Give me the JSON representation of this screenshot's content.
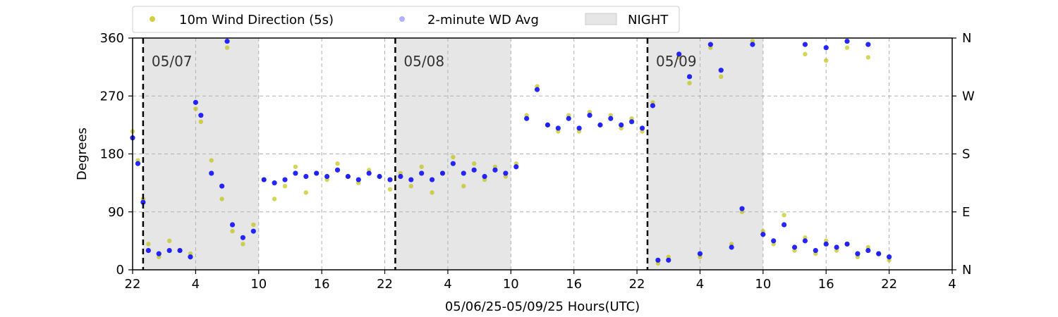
{
  "chart_data": {
    "type": "scatter",
    "xlabel": "05/06/25-05/09/25  Hours(UTC)",
    "ylabel": "Degrees",
    "x_range_hours": [
      0,
      78
    ],
    "ylim": [
      0,
      360
    ],
    "x_ticks": [
      {
        "hour": 0,
        "label": "22"
      },
      {
        "hour": 6,
        "label": "4"
      },
      {
        "hour": 12,
        "label": "10"
      },
      {
        "hour": 18,
        "label": "16"
      },
      {
        "hour": 24,
        "label": "22"
      },
      {
        "hour": 30,
        "label": "4"
      },
      {
        "hour": 36,
        "label": "10"
      },
      {
        "hour": 42,
        "label": "16"
      },
      {
        "hour": 48,
        "label": "22"
      },
      {
        "hour": 54,
        "label": "4"
      },
      {
        "hour": 60,
        "label": "10"
      },
      {
        "hour": 66,
        "label": "16"
      },
      {
        "hour": 72,
        "label": "22"
      },
      {
        "hour": 78,
        "label": "4"
      }
    ],
    "y_ticks": [
      0,
      90,
      180,
      270,
      360
    ],
    "y_ticks_right": [
      {
        "value": 0,
        "label": "N"
      },
      {
        "value": 90,
        "label": "E"
      },
      {
        "value": 180,
        "label": "S"
      },
      {
        "value": 270,
        "label": "W"
      },
      {
        "value": 360,
        "label": "N"
      }
    ],
    "grid": true,
    "legend_placement": "top-left, above plot",
    "legend": [
      {
        "label": "10m Wind Direction (5s)",
        "color": "#bfbf00",
        "marker": "circle"
      },
      {
        "label": "2-minute WD Avg",
        "color": "#0000ff",
        "marker": "circle-translucent"
      },
      {
        "label": "NIGHT",
        "color": "#e6e6e6",
        "marker": "box"
      }
    ],
    "day_boundaries": [
      {
        "hour": 1.0,
        "label": "05/07"
      },
      {
        "hour": 25.0,
        "label": "05/08"
      },
      {
        "hour": 49.0,
        "label": "05/09"
      }
    ],
    "night_periods": [
      {
        "start": 1.0,
        "end": 12.0
      },
      {
        "start": 25.0,
        "end": 36.0
      },
      {
        "start": 49.0,
        "end": 60.0
      }
    ],
    "series": [
      {
        "name": "10m Wind Direction (5s)",
        "color": "#bfbf00",
        "points": [
          {
            "x": 0.0,
            "y": 215
          },
          {
            "x": 0.5,
            "y": 170
          },
          {
            "x": 1.0,
            "y": 110
          },
          {
            "x": 1.5,
            "y": 40
          },
          {
            "x": 2.5,
            "y": 20
          },
          {
            "x": 3.5,
            "y": 45
          },
          {
            "x": 4.5,
            "y": 30
          },
          {
            "x": 5.5,
            "y": 25
          },
          {
            "x": 6.0,
            "y": 250
          },
          {
            "x": 6.5,
            "y": 230
          },
          {
            "x": 7.5,
            "y": 170
          },
          {
            "x": 8.5,
            "y": 110
          },
          {
            "x": 9.0,
            "y": 345
          },
          {
            "x": 9.5,
            "y": 60
          },
          {
            "x": 10.5,
            "y": 40
          },
          {
            "x": 11.5,
            "y": 70
          },
          {
            "x": 12.5,
            "y": 140
          },
          {
            "x": 13.5,
            "y": 110
          },
          {
            "x": 14.5,
            "y": 130
          },
          {
            "x": 15.5,
            "y": 160
          },
          {
            "x": 16.5,
            "y": 120
          },
          {
            "x": 17.5,
            "y": 150
          },
          {
            "x": 18.5,
            "y": 140
          },
          {
            "x": 19.5,
            "y": 165
          },
          {
            "x": 20.5,
            "y": 145
          },
          {
            "x": 21.5,
            "y": 135
          },
          {
            "x": 22.5,
            "y": 155
          },
          {
            "x": 23.5,
            "y": 145
          },
          {
            "x": 24.5,
            "y": 125
          },
          {
            "x": 25.5,
            "y": 150
          },
          {
            "x": 26.5,
            "y": 130
          },
          {
            "x": 27.5,
            "y": 160
          },
          {
            "x": 28.5,
            "y": 120
          },
          {
            "x": 29.5,
            "y": 150
          },
          {
            "x": 30.5,
            "y": 175
          },
          {
            "x": 31.5,
            "y": 130
          },
          {
            "x": 32.5,
            "y": 165
          },
          {
            "x": 33.5,
            "y": 140
          },
          {
            "x": 34.5,
            "y": 160
          },
          {
            "x": 35.5,
            "y": 145
          },
          {
            "x": 36.5,
            "y": 165
          },
          {
            "x": 37.5,
            "y": 240
          },
          {
            "x": 38.5,
            "y": 285
          },
          {
            "x": 39.5,
            "y": 225
          },
          {
            "x": 40.5,
            "y": 215
          },
          {
            "x": 41.5,
            "y": 240
          },
          {
            "x": 42.5,
            "y": 215
          },
          {
            "x": 43.5,
            "y": 245
          },
          {
            "x": 44.5,
            "y": 225
          },
          {
            "x": 45.5,
            "y": 240
          },
          {
            "x": 46.5,
            "y": 220
          },
          {
            "x": 47.5,
            "y": 235
          },
          {
            "x": 48.5,
            "y": 215
          },
          {
            "x": 49.5,
            "y": 260
          },
          {
            "x": 50.0,
            "y": 10
          },
          {
            "x": 51.0,
            "y": 20
          },
          {
            "x": 52.0,
            "y": 330
          },
          {
            "x": 53.0,
            "y": 290
          },
          {
            "x": 54.0,
            "y": 20
          },
          {
            "x": 55.0,
            "y": 345
          },
          {
            "x": 56.0,
            "y": 300
          },
          {
            "x": 57.0,
            "y": 40
          },
          {
            "x": 58.0,
            "y": 90
          },
          {
            "x": 59.0,
            "y": 355
          },
          {
            "x": 60.0,
            "y": 60
          },
          {
            "x": 61.0,
            "y": 40
          },
          {
            "x": 62.0,
            "y": 85
          },
          {
            "x": 63.0,
            "y": 30
          },
          {
            "x": 64.0,
            "y": 50
          },
          {
            "x": 65.0,
            "y": 25
          },
          {
            "x": 66.0,
            "y": 45
          },
          {
            "x": 67.0,
            "y": 30
          },
          {
            "x": 68.0,
            "y": 40
          },
          {
            "x": 69.0,
            "y": 20
          },
          {
            "x": 70.0,
            "y": 35
          },
          {
            "x": 71.0,
            "y": 25
          },
          {
            "x": 72.0,
            "y": 15
          },
          {
            "x": 64.0,
            "y": 335
          },
          {
            "x": 66.0,
            "y": 325
          },
          {
            "x": 68.0,
            "y": 345
          },
          {
            "x": 70.0,
            "y": 330
          }
        ]
      },
      {
        "name": "2-minute WD Avg",
        "color": "#0000ff",
        "points": [
          {
            "x": 0.0,
            "y": 205
          },
          {
            "x": 0.5,
            "y": 165
          },
          {
            "x": 1.0,
            "y": 105
          },
          {
            "x": 1.5,
            "y": 30
          },
          {
            "x": 2.5,
            "y": 25
          },
          {
            "x": 3.5,
            "y": 30
          },
          {
            "x": 4.5,
            "y": 30
          },
          {
            "x": 5.5,
            "y": 20
          },
          {
            "x": 6.0,
            "y": 260
          },
          {
            "x": 6.5,
            "y": 240
          },
          {
            "x": 7.5,
            "y": 150
          },
          {
            "x": 8.5,
            "y": 130
          },
          {
            "x": 9.0,
            "y": 355
          },
          {
            "x": 9.5,
            "y": 70
          },
          {
            "x": 10.5,
            "y": 50
          },
          {
            "x": 11.5,
            "y": 60
          },
          {
            "x": 12.5,
            "y": 140
          },
          {
            "x": 13.5,
            "y": 135
          },
          {
            "x": 14.5,
            "y": 140
          },
          {
            "x": 15.5,
            "y": 150
          },
          {
            "x": 16.5,
            "y": 145
          },
          {
            "x": 17.5,
            "y": 150
          },
          {
            "x": 18.5,
            "y": 145
          },
          {
            "x": 19.5,
            "y": 155
          },
          {
            "x": 20.5,
            "y": 145
          },
          {
            "x": 21.5,
            "y": 140
          },
          {
            "x": 22.5,
            "y": 150
          },
          {
            "x": 23.5,
            "y": 145
          },
          {
            "x": 24.5,
            "y": 140
          },
          {
            "x": 25.5,
            "y": 145
          },
          {
            "x": 26.5,
            "y": 140
          },
          {
            "x": 27.5,
            "y": 150
          },
          {
            "x": 28.5,
            "y": 140
          },
          {
            "x": 29.5,
            "y": 150
          },
          {
            "x": 30.5,
            "y": 165
          },
          {
            "x": 31.5,
            "y": 150
          },
          {
            "x": 32.5,
            "y": 155
          },
          {
            "x": 33.5,
            "y": 145
          },
          {
            "x": 34.5,
            "y": 155
          },
          {
            "x": 35.5,
            "y": 150
          },
          {
            "x": 36.5,
            "y": 160
          },
          {
            "x": 37.5,
            "y": 235
          },
          {
            "x": 38.5,
            "y": 280
          },
          {
            "x": 39.5,
            "y": 225
          },
          {
            "x": 40.5,
            "y": 220
          },
          {
            "x": 41.5,
            "y": 235
          },
          {
            "x": 42.5,
            "y": 220
          },
          {
            "x": 43.5,
            "y": 240
          },
          {
            "x": 44.5,
            "y": 225
          },
          {
            "x": 45.5,
            "y": 235
          },
          {
            "x": 46.5,
            "y": 225
          },
          {
            "x": 47.5,
            "y": 230
          },
          {
            "x": 48.5,
            "y": 220
          },
          {
            "x": 49.5,
            "y": 255
          },
          {
            "x": 50.0,
            "y": 15
          },
          {
            "x": 51.0,
            "y": 15
          },
          {
            "x": 52.0,
            "y": 335
          },
          {
            "x": 53.0,
            "y": 300
          },
          {
            "x": 54.0,
            "y": 25
          },
          {
            "x": 55.0,
            "y": 350
          },
          {
            "x": 56.0,
            "y": 310
          },
          {
            "x": 57.0,
            "y": 35
          },
          {
            "x": 58.0,
            "y": 95
          },
          {
            "x": 59.0,
            "y": 350
          },
          {
            "x": 60.0,
            "y": 55
          },
          {
            "x": 61.0,
            "y": 45
          },
          {
            "x": 62.0,
            "y": 70
          },
          {
            "x": 63.0,
            "y": 35
          },
          {
            "x": 64.0,
            "y": 45
          },
          {
            "x": 65.0,
            "y": 30
          },
          {
            "x": 66.0,
            "y": 40
          },
          {
            "x": 67.0,
            "y": 35
          },
          {
            "x": 68.0,
            "y": 40
          },
          {
            "x": 69.0,
            "y": 25
          },
          {
            "x": 70.0,
            "y": 30
          },
          {
            "x": 71.0,
            "y": 25
          },
          {
            "x": 72.0,
            "y": 20
          },
          {
            "x": 64.0,
            "y": 350
          },
          {
            "x": 66.0,
            "y": 345
          },
          {
            "x": 68.0,
            "y": 355
          },
          {
            "x": 70.0,
            "y": 350
          }
        ]
      }
    ]
  }
}
